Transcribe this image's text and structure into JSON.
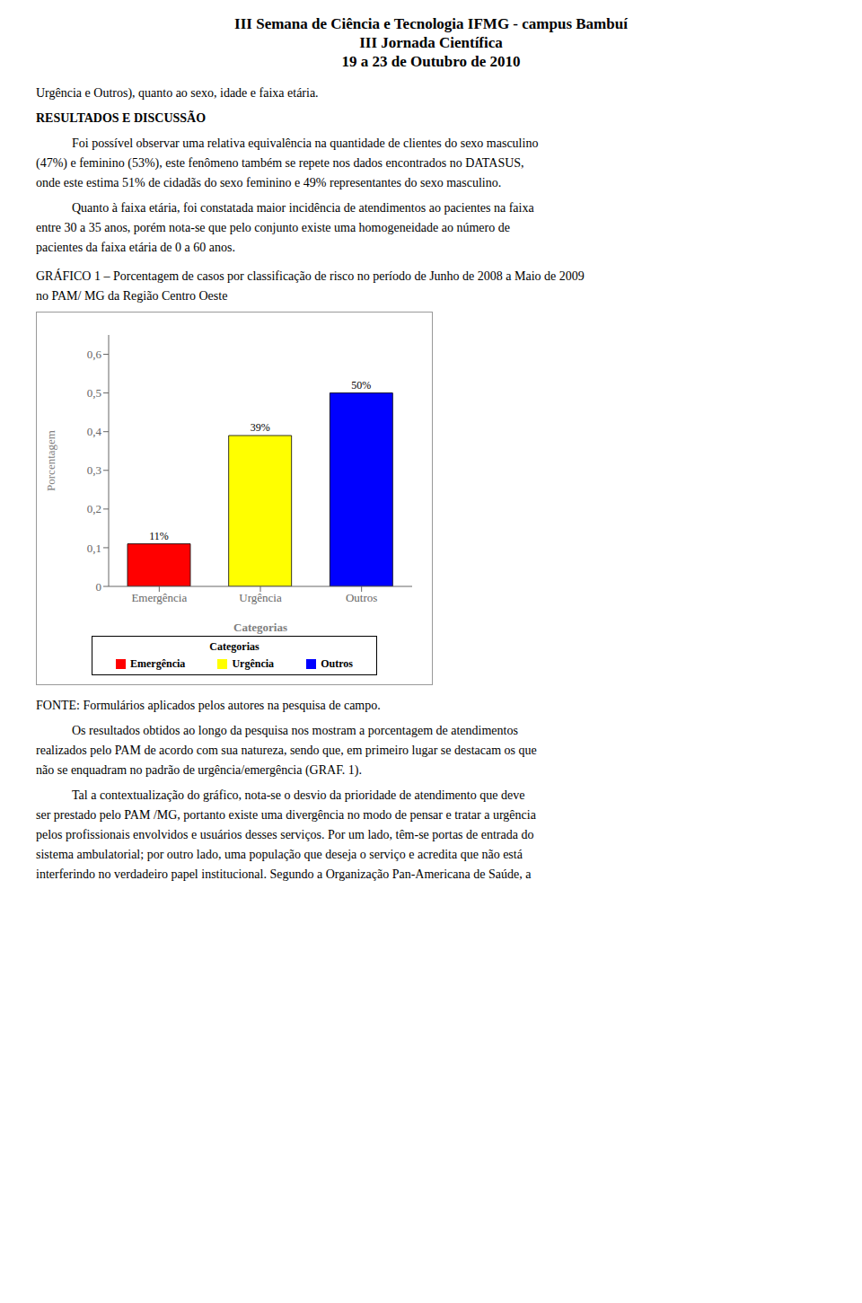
{
  "chart_data": {
    "type": "bar",
    "title": "GRÁFICO 1 – Porcentagem de casos por classificação de risco no período de Junho de 2008 a Maio de 2009",
    "subtitle": "no PAM/ MG da Região Centro Oeste",
    "categories": [
      "Emergência",
      "Urgência",
      "Outros"
    ],
    "values": [
      0.11,
      0.39,
      0.5
    ],
    "value_labels": [
      "11%",
      "39%",
      "50%"
    ],
    "data_labels": true,
    "colors": [
      "#FF0000",
      "#FFFF00",
      "#0000FF"
    ],
    "xlabel": "Categorias",
    "ylabel": "Porcentagem",
    "ylim": [
      0,
      0.65
    ],
    "yticks": [
      0,
      {
        "value": 0.1,
        "label": "0,1"
      },
      {
        "value": 0.2,
        "label": "0,2"
      },
      {
        "value": 0.3,
        "label": "0,3"
      },
      {
        "value": 0.4,
        "label": "0,4"
      },
      {
        "value": 0.5,
        "label": "0,5"
      },
      {
        "value": 0.6,
        "label": "0,6"
      }
    ],
    "grid": false,
    "legend": "bottom",
    "legend_title": "Categorias"
  },
  "page": {
    "title": [
      "III Semana de Ciência e Tecnologia IFMG - campus Bambuí",
      "III Jornada Científica",
      "19 a 23 de Outubro de 2010"
    ],
    "text_before": [
      [
        "Urgência e Outros), quanto ao sexo, idade e faixa etária."
      ],
      [
        "RESULTADOS E DISCUSSÃO"
      ],
      [
        "Foi possível observar uma relativa equivalência na quantidade de clientes do sexo masculino",
        "(47%) e feminino (53%), este fenômeno também se repete nos dados encontrados no DATASUS,",
        "onde este estima 51% de cidadãs do sexo feminino e 49% representantes do sexo masculino."
      ],
      [
        "Quanto à faixa etária, foi constatada maior incidência de atendimentos ao pacientes na faixa",
        "entre 30 a 35 anos, porém nota-se que pelo conjunto existe uma homogeneidade ao número de",
        "pacientes da faixa etária de 0 a 60 anos."
      ]
    ],
    "text_after": [
      [
        "FONTE: Formulários aplicados pelos autores na pesquisa de campo."
      ],
      [
        "Os resultados obtidos ao longo da pesquisa nos mostram a porcentagem de atendimentos",
        "realizados pelo PAM de acordo com sua natureza, sendo que, em primeiro lugar se destacam os que",
        "não se enquadram no padrão de urgência/emergência (GRAF. 1)."
      ],
      [
        "Tal a contextualização do gráfico, nota-se o desvio da prioridade de atendimento que deve",
        "ser prestado pelo PAM /MG, portanto existe uma divergência no modo de pensar e tratar a urgência",
        "pelos profissionais envolvidos e usuários desses serviços. Por um lado, têm-se portas de entrada do",
        "sistema ambulatorial; por outro lado, uma população que deseja o serviço e acredita que não está",
        "interferindo no verdadeiro papel institucional. Segundo a Organização Pan-Americana de Saúde, a"
      ]
    ]
  }
}
